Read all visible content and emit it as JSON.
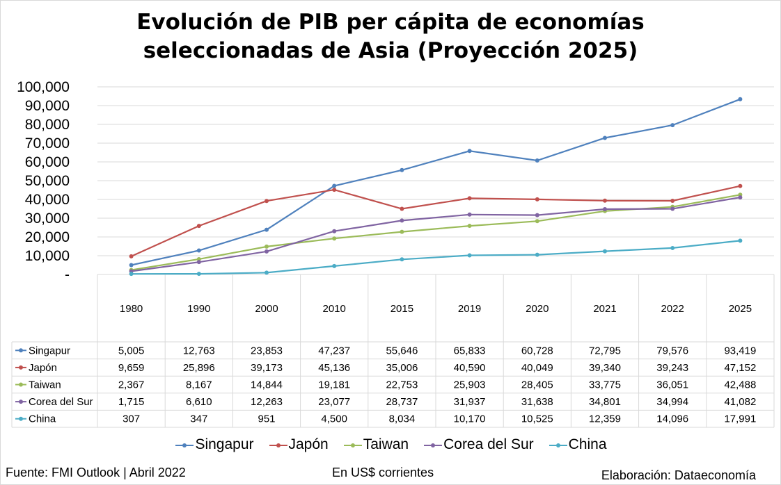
{
  "chart_data": {
    "type": "line",
    "title_lines": [
      "Evolución de PIB per cápita de economías",
      "seleccionadas de Asia (Proyección 2025)"
    ],
    "categories": [
      "1980",
      "1990",
      "2000",
      "2010",
      "2015",
      "2019",
      "2020",
      "2021",
      "2022",
      "2025"
    ],
    "ylim": [
      0,
      100000
    ],
    "y_ticks": [
      "-",
      "10,000",
      "20,000",
      "30,000",
      "40,000",
      "50,000",
      "60,000",
      "70,000",
      "80,000",
      "90,000",
      "100,000"
    ],
    "grid": true,
    "legend_position": "bottom",
    "data_table": true,
    "series": [
      {
        "name": "Singapur",
        "color": "#4f81bd",
        "values": [
          5005,
          12763,
          23853,
          47237,
          55646,
          65833,
          60728,
          72795,
          79576,
          93419
        ],
        "labels": [
          "5,005",
          "12,763",
          "23,853",
          "47,237",
          "55,646",
          "65,833",
          "60,728",
          "72,795",
          "79,576",
          "93,419"
        ]
      },
      {
        "name": "Japón",
        "color": "#c0504d",
        "values": [
          9659,
          25896,
          39173,
          45136,
          35006,
          40590,
          40049,
          39340,
          39243,
          47152
        ],
        "labels": [
          "9,659",
          "25,896",
          "39,173",
          "45,136",
          "35,006",
          "40,590",
          "40,049",
          "39,340",
          "39,243",
          "47,152"
        ]
      },
      {
        "name": "Taiwan",
        "color": "#9bbb59",
        "values": [
          2367,
          8167,
          14844,
          19181,
          22753,
          25903,
          28405,
          33775,
          36051,
          42488
        ],
        "labels": [
          "2,367",
          "8,167",
          "14,844",
          "19,181",
          "22,753",
          "25,903",
          "28,405",
          "33,775",
          "36,051",
          "42,488"
        ]
      },
      {
        "name": "Corea del Sur",
        "color": "#8064a2",
        "values": [
          1715,
          6610,
          12263,
          23077,
          28737,
          31937,
          31638,
          34801,
          34994,
          41082
        ],
        "labels": [
          "1,715",
          "6,610",
          "12,263",
          "23,077",
          "28,737",
          "31,937",
          "31,638",
          "34,801",
          "34,994",
          "41,082"
        ]
      },
      {
        "name": "China",
        "color": "#4bacc6",
        "values": [
          307,
          347,
          951,
          4500,
          8034,
          10170,
          10525,
          12359,
          14096,
          17991
        ],
        "labels": [
          "307",
          "347",
          "951",
          "4,500",
          "8,034",
          "10,170",
          "10,525",
          "12,359",
          "14,096",
          "17,991"
        ]
      }
    ]
  },
  "footer": {
    "source": "Fuente: FMI Outlook | Abril 2022",
    "units": "En US$ corrientes",
    "credit": "Elaboración: Dataeconomía"
  }
}
